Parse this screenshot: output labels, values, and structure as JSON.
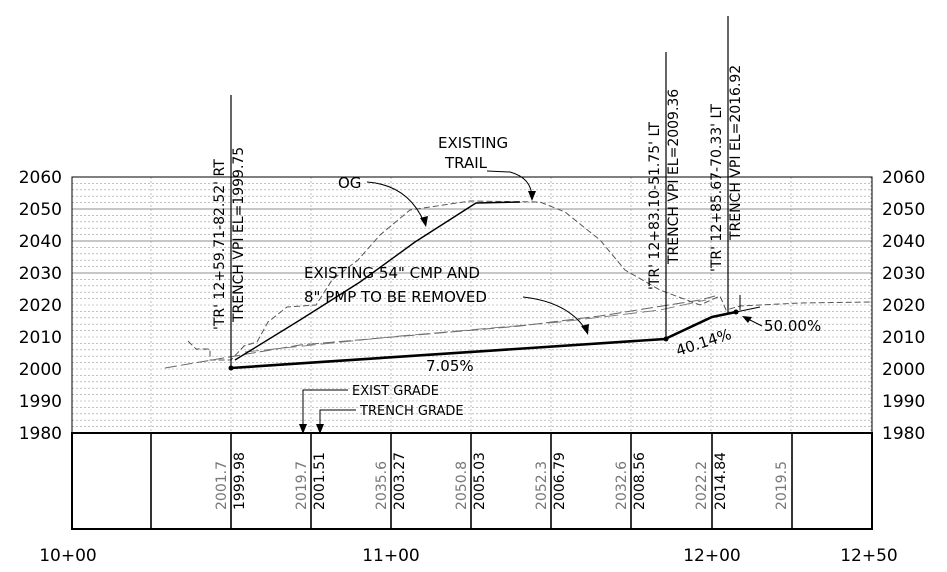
{
  "elevation_labels": [
    "2060",
    "2050",
    "2040",
    "2030",
    "2020",
    "2010",
    "2000",
    "1990",
    "1980"
  ],
  "station_labels": [
    "10+00",
    "11+00",
    "12+00",
    "12+50"
  ],
  "callouts": {
    "vpi_left": [
      "'TR' 12+59.71-82.52' RT",
      "TRENCH VPI EL=1999.75"
    ],
    "vpi_mid": [
      "'TR' 12+83.10-51.75' LT",
      "TRENCH VPI EL=2009.36"
    ],
    "vpi_right": [
      "'TR' 12+85.67-70.33' LT",
      "TRENCH VPI EL=2016.92"
    ],
    "existing_trail": [
      "EXISTING",
      "TRAIL"
    ],
    "og": "OG",
    "cmp": [
      "EXISTING 54\" CMP AND",
      "8\" PMP TO BE REMOVED"
    ],
    "exist_grade": "EXIST GRADE",
    "trench_grade": "TRENCH GRADE"
  },
  "grades": {
    "g1": "7.05%",
    "g2": "40.14%",
    "g3": "50.00%"
  },
  "table": {
    "exist_grade_values": [
      "2001.7",
      "2019.7",
      "2035.6",
      "2050.8",
      "2052.3",
      "2032.6",
      "2022.2",
      "2019.5"
    ],
    "trench_grade_values": [
      "1999.98",
      "2001.51",
      "2003.27",
      "2005.03",
      "2006.79",
      "2008.56",
      "2014.84"
    ]
  },
  "colors": {
    "line": "#000000",
    "grid": "#9a9a9a",
    "existing_ground": "#555555",
    "gray_text": "#777777"
  }
}
